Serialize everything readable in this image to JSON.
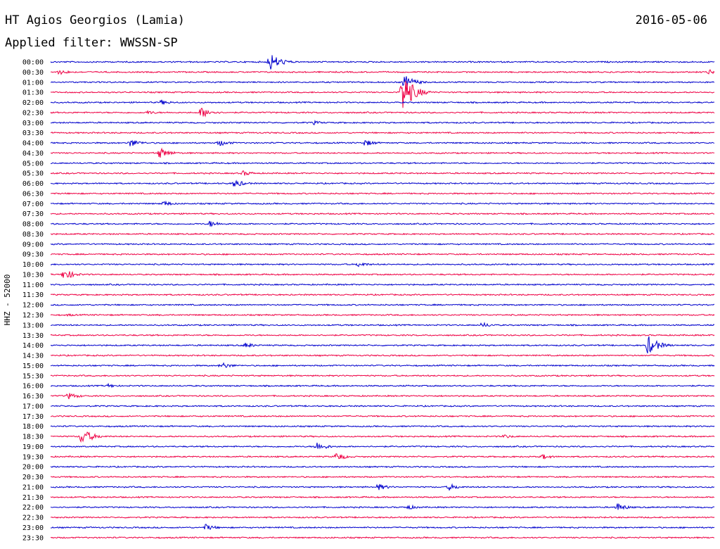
{
  "header": {
    "station": "HT Agios Georgios (Lamia)",
    "date": "2016-05-06",
    "filter": "Applied filter: WWSSN-SP"
  },
  "chart_data": {
    "type": "line",
    "title": "HT Agios Georgios (Lamia)",
    "subtitle": "Applied filter: WWSSN-SP",
    "ylabel": "HHZ - 52000",
    "xlabel": "",
    "grid": false,
    "row_minutes": 30,
    "colors": {
      "even": "#0000cc",
      "odd": "#ee0044"
    },
    "categories": [
      "00:00",
      "00:30",
      "01:00",
      "01:30",
      "02:00",
      "02:30",
      "03:00",
      "03:30",
      "04:00",
      "04:30",
      "05:00",
      "05:30",
      "06:00",
      "06:30",
      "07:00",
      "07:30",
      "08:00",
      "08:30",
      "09:00",
      "09:30",
      "10:00",
      "10:30",
      "11:00",
      "11:30",
      "12:00",
      "12:30",
      "13:00",
      "13:30",
      "14:00",
      "14:30",
      "15:00",
      "15:30",
      "16:00",
      "16:30",
      "17:00",
      "17:30",
      "18:00",
      "18:30",
      "19:00",
      "19:30",
      "20:00",
      "20:30",
      "21:00",
      "21:30",
      "22:00",
      "22:30",
      "23:00",
      "23:30"
    ],
    "events": [
      {
        "row": "00:00",
        "minute": 9.9,
        "amplitude": 14
      },
      {
        "row": "00:30",
        "minute": 0.4,
        "amplitude": 4
      },
      {
        "row": "00:30",
        "minute": 29.7,
        "amplitude": 4
      },
      {
        "row": "01:00",
        "minute": 16.0,
        "amplitude": 10
      },
      {
        "row": "01:30",
        "minute": 15.9,
        "amplitude": 30
      },
      {
        "row": "02:00",
        "minute": 5.0,
        "amplitude": 4
      },
      {
        "row": "02:30",
        "minute": 6.8,
        "amplitude": 8
      },
      {
        "row": "02:30",
        "minute": 4.4,
        "amplitude": 3
      },
      {
        "row": "03:00",
        "minute": 11.9,
        "amplitude": 3
      },
      {
        "row": "04:00",
        "minute": 3.6,
        "amplitude": 6
      },
      {
        "row": "04:00",
        "minute": 7.6,
        "amplitude": 5
      },
      {
        "row": "04:00",
        "minute": 14.2,
        "amplitude": 5
      },
      {
        "row": "04:30",
        "minute": 4.9,
        "amplitude": 8
      },
      {
        "row": "05:30",
        "minute": 8.7,
        "amplitude": 4
      },
      {
        "row": "06:00",
        "minute": 8.3,
        "amplitude": 6
      },
      {
        "row": "07:00",
        "minute": 5.1,
        "amplitude": 4
      },
      {
        "row": "08:00",
        "minute": 7.2,
        "amplitude": 5
      },
      {
        "row": "10:00",
        "minute": 13.9,
        "amplitude": 4
      },
      {
        "row": "10:30",
        "minute": 0.6,
        "amplitude": 8
      },
      {
        "row": "12:30",
        "minute": 0.8,
        "amplitude": 2
      },
      {
        "row": "13:00",
        "minute": 19.5,
        "amplitude": 4
      },
      {
        "row": "14:00",
        "minute": 27.0,
        "amplitude": 14
      },
      {
        "row": "14:00",
        "minute": 8.8,
        "amplitude": 4
      },
      {
        "row": "15:00",
        "minute": 7.7,
        "amplitude": 5
      },
      {
        "row": "16:00",
        "minute": 2.6,
        "amplitude": 3
      },
      {
        "row": "16:30",
        "minute": 0.8,
        "amplitude": 5
      },
      {
        "row": "18:30",
        "minute": 1.4,
        "amplitude": 12
      },
      {
        "row": "18:30",
        "minute": 20.5,
        "amplitude": 3
      },
      {
        "row": "19:00",
        "minute": 12.0,
        "amplitude": 7
      },
      {
        "row": "19:30",
        "minute": 12.9,
        "amplitude": 6
      },
      {
        "row": "19:30",
        "minute": 22.2,
        "amplitude": 4
      },
      {
        "row": "21:00",
        "minute": 14.8,
        "amplitude": 5
      },
      {
        "row": "21:00",
        "minute": 18.0,
        "amplitude": 5
      },
      {
        "row": "22:00",
        "minute": 16.1,
        "amplitude": 4
      },
      {
        "row": "22:00",
        "minute": 25.6,
        "amplitude": 6
      },
      {
        "row": "23:00",
        "minute": 7.0,
        "amplitude": 5
      }
    ]
  }
}
